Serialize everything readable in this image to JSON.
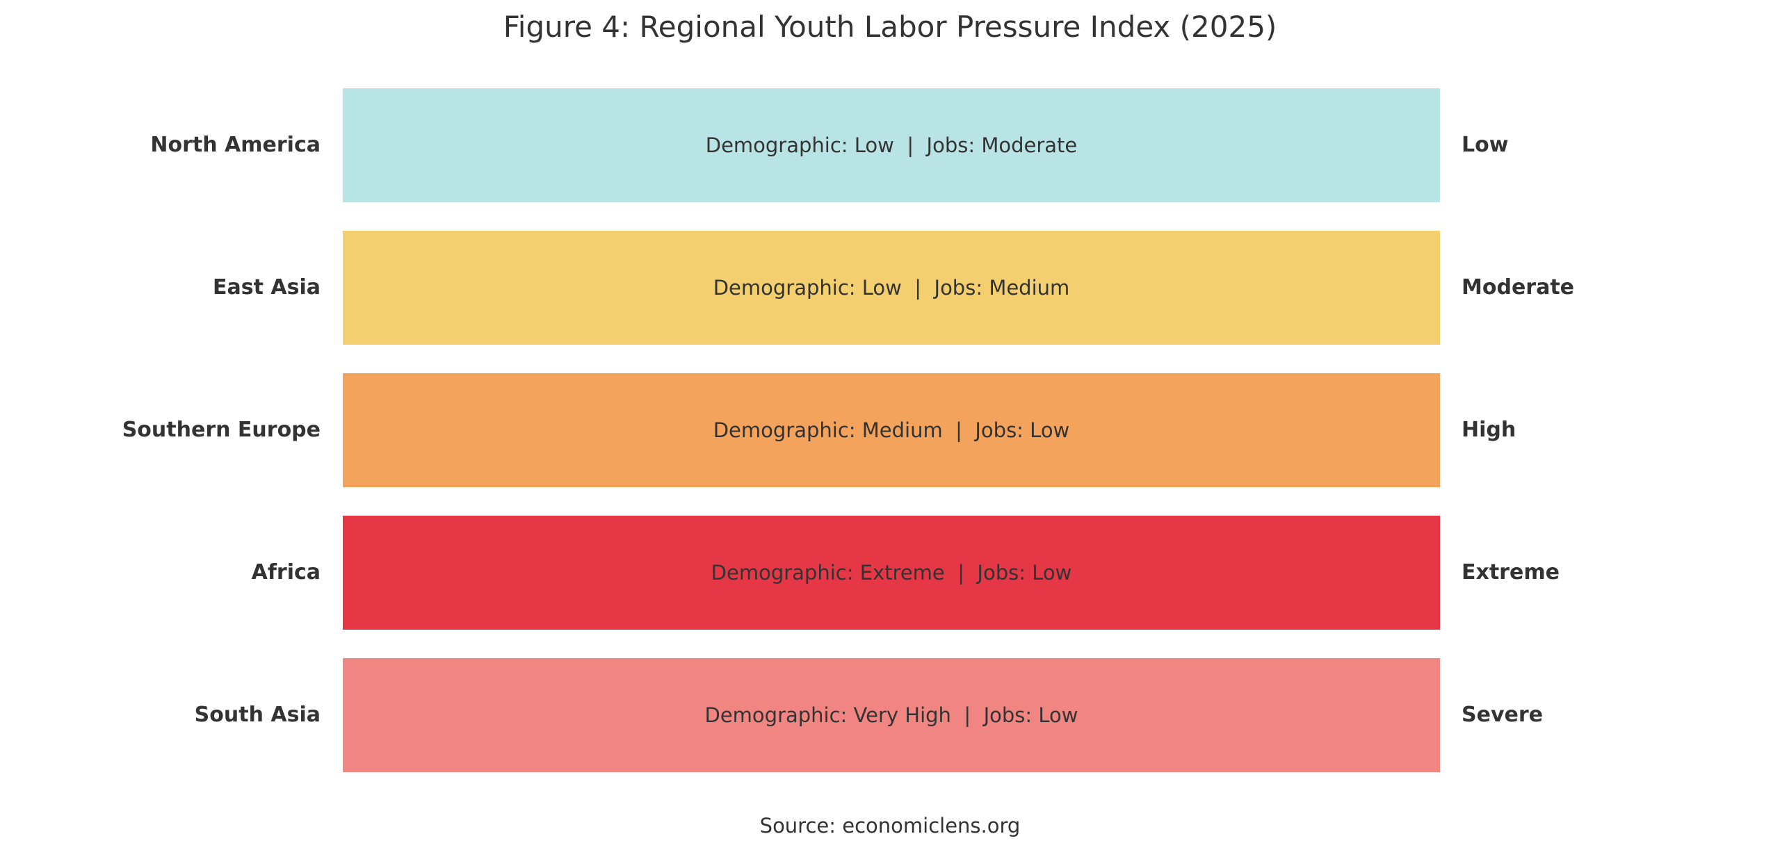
{
  "title": "Figure 4: Regional Youth Labor Pressure Index (2025)",
  "source": "Source: economiclens.org",
  "chart_data": {
    "type": "bar",
    "categories": [
      "North America",
      "East Asia",
      "Southern Europe",
      "Africa",
      "South Asia"
    ],
    "bars": [
      {
        "region": "North America",
        "label": "Demographic: Low  |  Jobs: Moderate",
        "demographic": "Low",
        "jobs": "Moderate",
        "pressure": "Low",
        "color": "#b9e4e6"
      },
      {
        "region": "East Asia",
        "label": "Demographic: Low  |  Jobs: Medium",
        "demographic": "Low",
        "jobs": "Medium",
        "pressure": "Moderate",
        "color": "#f3cf70"
      },
      {
        "region": "Southern Europe",
        "label": "Demographic: Medium  |  Jobs: Low",
        "demographic": "Medium",
        "jobs": "Low",
        "pressure": "High",
        "color": "#f3a35c"
      },
      {
        "region": "Africa",
        "label": "Demographic: Extreme  |  Jobs: Low",
        "demographic": "Extreme",
        "jobs": "Low",
        "pressure": "Extreme",
        "color": "#e63746"
      },
      {
        "region": "South Asia",
        "label": "Demographic: Very High  |  Jobs: Low",
        "demographic": "Very High",
        "jobs": "Low",
        "pressure": "Severe",
        "color": "#f18581"
      }
    ],
    "grid": false,
    "legend": "none"
  }
}
